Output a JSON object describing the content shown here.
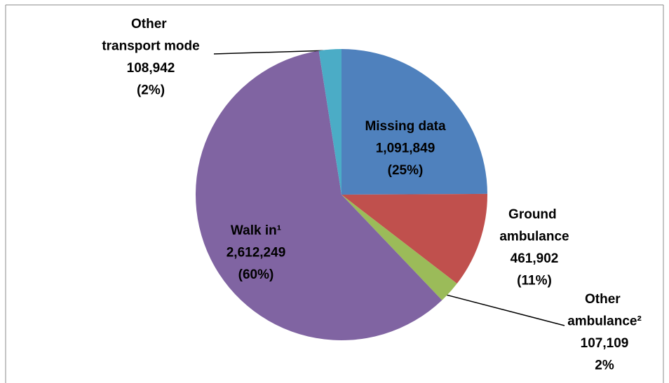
{
  "chart_data": {
    "type": "pie",
    "categories": [
      "Missing data",
      "Ground ambulance",
      "Other ambulance²",
      "Walk in¹",
      "Other transport mode"
    ],
    "values": [
      1091849,
      461902,
      107109,
      2612249,
      108942
    ],
    "value_labels": [
      "1,091,849",
      "461,902",
      "107,109",
      "2,612,249",
      "108,942"
    ],
    "percent_labels": [
      "(25%)",
      "(11%)",
      "2%",
      "(60%)",
      "(2%)"
    ],
    "colors": [
      "#4f81bd",
      "#c0504d",
      "#9bbb59",
      "#8064a2",
      "#4bacc6"
    ]
  }
}
